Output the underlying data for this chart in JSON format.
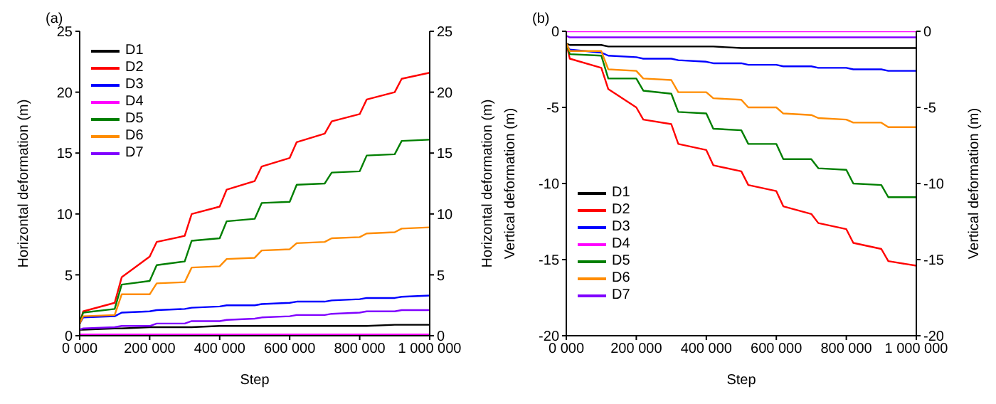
{
  "chart_data": [
    {
      "type": "line",
      "title": "(a)",
      "xlabel": "Step",
      "ylabel": "Horizontal deformation (m)",
      "y2label": "Horizontal deformation (m)",
      "x": [
        0,
        10000,
        100000,
        120000,
        200000,
        220000,
        300000,
        320000,
        400000,
        420000,
        500000,
        520000,
        600000,
        620000,
        700000,
        720000,
        800000,
        820000,
        900000,
        920000,
        1000000
      ],
      "series": [
        {
          "name": "D1",
          "color": "#000000",
          "values": [
            0.5,
            0.5,
            0.6,
            0.6,
            0.7,
            0.7,
            0.7,
            0.7,
            0.8,
            0.8,
            0.8,
            0.8,
            0.8,
            0.8,
            0.8,
            0.8,
            0.8,
            0.8,
            0.9,
            0.9,
            0.9
          ]
        },
        {
          "name": "D2",
          "color": "#ff0000",
          "values": [
            1.0,
            2.0,
            2.7,
            4.8,
            6.5,
            7.7,
            8.2,
            10.0,
            10.6,
            12.0,
            12.7,
            13.9,
            14.6,
            15.9,
            16.6,
            17.6,
            18.2,
            19.4,
            20.0,
            21.1,
            21.6
          ]
        },
        {
          "name": "D3",
          "color": "#0000ff",
          "values": [
            1.0,
            1.5,
            1.6,
            1.9,
            2.0,
            2.1,
            2.2,
            2.3,
            2.4,
            2.5,
            2.5,
            2.6,
            2.7,
            2.8,
            2.8,
            2.9,
            3.0,
            3.1,
            3.1,
            3.2,
            3.3
          ]
        },
        {
          "name": "D4",
          "color": "#ff00ff",
          "values": [
            0.1,
            0.1,
            0.1,
            0.1,
            0.1,
            0.1,
            0.1,
            0.1,
            0.1,
            0.1,
            0.1,
            0.1,
            0.1,
            0.1,
            0.1,
            0.1,
            0.1,
            0.1,
            0.1,
            0.1,
            0.1
          ]
        },
        {
          "name": "D5",
          "color": "#007f00",
          "values": [
            1.0,
            1.9,
            2.2,
            4.2,
            4.5,
            5.8,
            6.1,
            7.8,
            8.0,
            9.4,
            9.6,
            10.9,
            11.0,
            12.4,
            12.5,
            13.4,
            13.5,
            14.8,
            14.9,
            16.0,
            16.1
          ]
        },
        {
          "name": "D6",
          "color": "#ff8c00",
          "values": [
            1.0,
            1.6,
            1.7,
            3.4,
            3.4,
            4.3,
            4.4,
            5.6,
            5.7,
            6.3,
            6.4,
            7.0,
            7.1,
            7.6,
            7.7,
            8.0,
            8.1,
            8.4,
            8.5,
            8.8,
            8.9
          ]
        },
        {
          "name": "D7",
          "color": "#8000ff",
          "values": [
            0.5,
            0.6,
            0.7,
            0.8,
            0.8,
            1.0,
            1.0,
            1.2,
            1.2,
            1.3,
            1.4,
            1.5,
            1.6,
            1.7,
            1.7,
            1.8,
            1.9,
            2.0,
            2.0,
            2.1,
            2.1
          ]
        }
      ],
      "xlim": [
        0,
        1000000
      ],
      "xticks": [
        {
          "value": 0,
          "label": "0 000"
        },
        {
          "value": 200000,
          "label": "200 000"
        },
        {
          "value": 400000,
          "label": "400 000"
        },
        {
          "value": 600000,
          "label": "600 000"
        },
        {
          "value": 800000,
          "label": "800 000"
        },
        {
          "value": 1000000,
          "label": "1 000 000"
        }
      ],
      "ylim": [
        0,
        25
      ],
      "yticks": [
        0,
        5,
        10,
        15,
        20,
        25
      ],
      "y2lim": [
        0,
        25
      ],
      "y2ticks": [
        0,
        5,
        10,
        15,
        20,
        25
      ],
      "legend": "top left",
      "marker": "none",
      "line_style": "solid",
      "grid": false
    },
    {
      "type": "line",
      "title": "(b)",
      "xlabel": "Step",
      "ylabel": "Vertical deformation (m)",
      "y2label": "Vertical deformation (m)",
      "x": [
        0,
        10000,
        100000,
        120000,
        200000,
        220000,
        300000,
        320000,
        400000,
        420000,
        500000,
        520000,
        600000,
        620000,
        700000,
        720000,
        800000,
        820000,
        900000,
        920000,
        1000000
      ],
      "series": [
        {
          "name": "D1",
          "color": "#000000",
          "values": [
            -0.8,
            -0.9,
            -0.9,
            -1.0,
            -1.0,
            -1.0,
            -1.0,
            -1.0,
            -1.0,
            -1.0,
            -1.1,
            -1.1,
            -1.1,
            -1.1,
            -1.1,
            -1.1,
            -1.1,
            -1.1,
            -1.1,
            -1.1,
            -1.1
          ]
        },
        {
          "name": "D2",
          "color": "#ff0000",
          "values": [
            -0.8,
            -1.8,
            -2.4,
            -3.8,
            -5.0,
            -5.8,
            -6.1,
            -7.4,
            -7.8,
            -8.8,
            -9.2,
            -10.1,
            -10.5,
            -11.5,
            -12.0,
            -12.6,
            -13.0,
            -13.9,
            -14.3,
            -15.1,
            -15.4
          ]
        },
        {
          "name": "D3",
          "color": "#0000ff",
          "values": [
            -0.9,
            -1.2,
            -1.4,
            -1.6,
            -1.7,
            -1.8,
            -1.8,
            -1.9,
            -2.0,
            -2.1,
            -2.1,
            -2.2,
            -2.2,
            -2.3,
            -2.3,
            -2.4,
            -2.4,
            -2.5,
            -2.5,
            -2.6,
            -2.6
          ]
        },
        {
          "name": "D4",
          "color": "#ff00ff",
          "values": [
            0,
            0,
            0,
            0,
            0,
            0,
            0,
            0,
            0,
            0,
            0,
            0,
            0,
            0,
            0,
            0,
            0,
            0,
            0,
            0,
            0
          ]
        },
        {
          "name": "D5",
          "color": "#007f00",
          "values": [
            -0.8,
            -1.5,
            -1.6,
            -3.1,
            -3.1,
            -3.9,
            -4.1,
            -5.3,
            -5.4,
            -6.4,
            -6.5,
            -7.4,
            -7.4,
            -8.4,
            -8.4,
            -9.0,
            -9.1,
            -10.0,
            -10.1,
            -10.9,
            -10.9
          ]
        },
        {
          "name": "D6",
          "color": "#ff8c00",
          "values": [
            -0.8,
            -1.3,
            -1.3,
            -2.5,
            -2.6,
            -3.1,
            -3.2,
            -4.0,
            -4.0,
            -4.4,
            -4.5,
            -5.0,
            -5.0,
            -5.4,
            -5.5,
            -5.7,
            -5.8,
            -6.0,
            -6.0,
            -6.3,
            -6.3
          ]
        },
        {
          "name": "D7",
          "color": "#8000ff",
          "values": [
            -0.3,
            -0.4,
            -0.4,
            -0.4,
            -0.4,
            -0.4,
            -0.4,
            -0.4,
            -0.4,
            -0.4,
            -0.4,
            -0.4,
            -0.4,
            -0.4,
            -0.4,
            -0.4,
            -0.4,
            -0.4,
            -0.4,
            -0.4,
            -0.4
          ]
        }
      ],
      "xlim": [
        0,
        1000000
      ],
      "xticks": [
        {
          "value": 0,
          "label": "0 000"
        },
        {
          "value": 200000,
          "label": "200 000"
        },
        {
          "value": 400000,
          "label": "400 000"
        },
        {
          "value": 600000,
          "label": "600 000"
        },
        {
          "value": 800000,
          "label": "800 000"
        },
        {
          "value": 1000000,
          "label": "1 000 000"
        }
      ],
      "ylim": [
        -20,
        0
      ],
      "yticks": [
        -20,
        -15,
        -10,
        -5,
        0
      ],
      "y2lim": [
        -20,
        0
      ],
      "y2ticks": [
        -20,
        -15,
        -10,
        -5,
        0
      ],
      "legend": "bottom left",
      "marker": "none",
      "line_style": "solid",
      "grid": false
    }
  ]
}
